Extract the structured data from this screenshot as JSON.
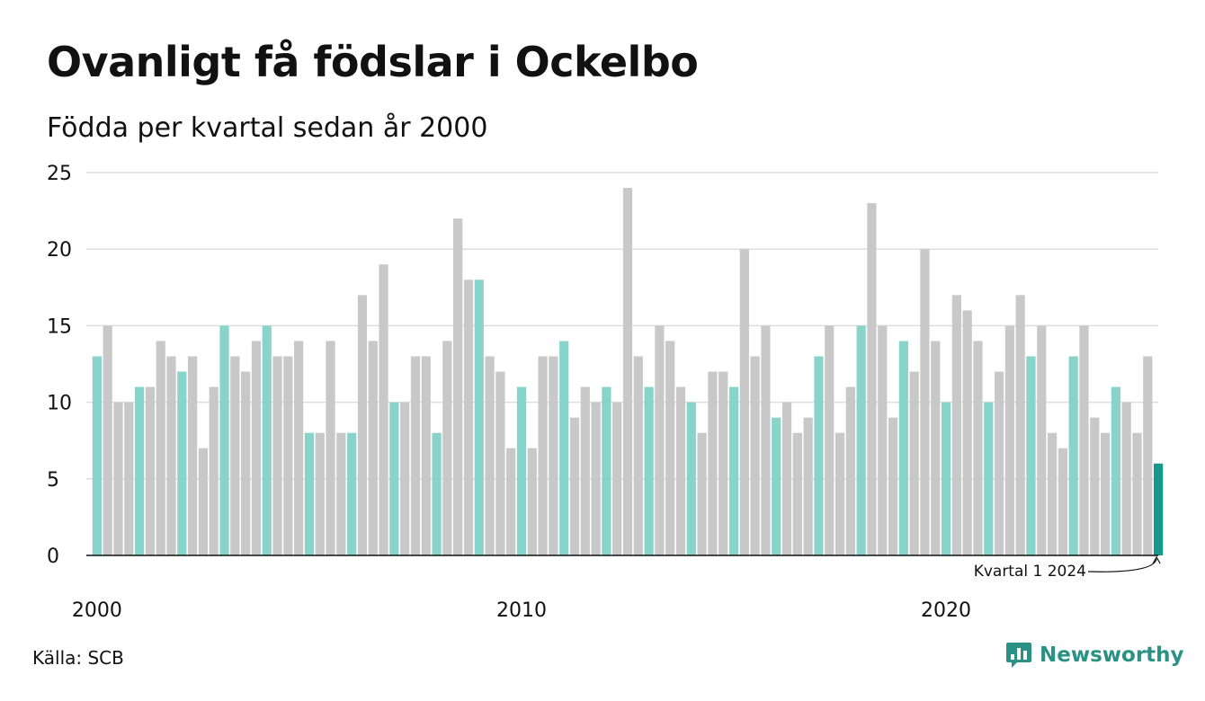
{
  "header": {
    "title": "Ovanligt få födslar i Ockelbo",
    "subtitle": "Födda per kvartal sedan år 2000"
  },
  "footer": {
    "source": "Källa: SCB",
    "brand": "Newsworthy"
  },
  "colors": {
    "q1": "#88d4cb",
    "other": "#c8c8c8",
    "latest": "#18978b",
    "grid": "#dddddd",
    "axis": "#111111",
    "brand": "#2a9185"
  },
  "chart_data": {
    "type": "bar",
    "title": "Ovanligt få födslar i Ockelbo",
    "subtitle": "Födda per kvartal sedan år 2000",
    "ylim": [
      0,
      25
    ],
    "yticks": [
      0,
      5,
      10,
      15,
      20,
      25
    ],
    "grid": true,
    "xticks": [
      {
        "label": "2000",
        "index": 0
      },
      {
        "label": "2010",
        "index": 40
      },
      {
        "label": "2020",
        "index": 80
      }
    ],
    "start": {
      "year": 2000,
      "quarter": 1
    },
    "annotation": {
      "text": "Kvartal 1 2024",
      "index": 100
    },
    "series": [
      {
        "values": [
          13,
          15,
          10,
          10,
          11,
          11,
          14,
          13,
          12,
          13,
          7,
          11,
          15,
          13,
          12,
          14,
          15,
          13,
          13,
          14,
          8,
          8,
          14,
          8,
          8,
          17,
          14,
          19,
          10,
          10,
          13,
          13,
          8,
          14,
          22,
          18,
          18,
          13,
          12,
          7,
          11,
          7,
          13,
          13,
          14,
          9,
          11,
          10,
          11,
          10,
          24,
          13,
          11,
          15,
          14,
          11,
          10,
          8,
          12,
          12,
          11,
          20,
          13,
          15,
          9,
          10,
          8,
          9,
          13,
          15,
          8,
          11,
          15,
          23,
          15,
          9,
          14,
          12,
          20,
          14,
          10,
          17,
          16,
          14,
          10,
          12,
          15,
          17,
          13,
          15,
          8,
          7,
          13,
          15,
          9,
          8,
          11,
          10,
          8,
          13,
          6
        ]
      }
    ]
  }
}
